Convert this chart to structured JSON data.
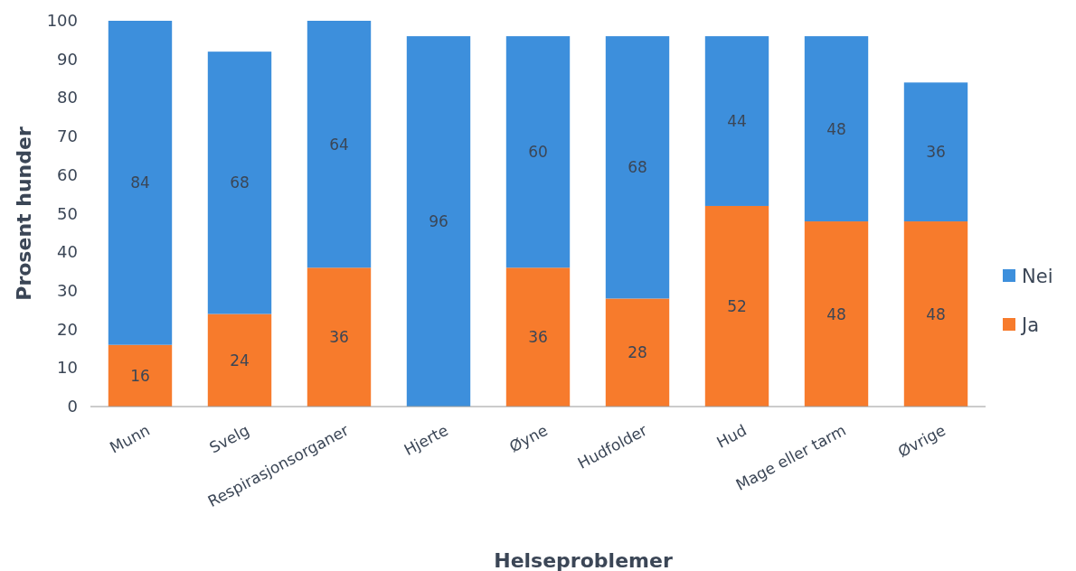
{
  "chart_data": {
    "type": "bar",
    "stacked": true,
    "xlabel": "Helseproblemer",
    "ylabel": "Prosent hunder",
    "categories": [
      "Munn",
      "Svelg",
      "Respirasjonsorganer",
      "Hjerte",
      "Øyne",
      "Hudfolder",
      "Hud",
      "Mage eller tarm",
      "Øvrige"
    ],
    "series": [
      {
        "name": "Ja",
        "color": "#f77b2c",
        "values": [
          16,
          24,
          36,
          null,
          36,
          28,
          52,
          48,
          48
        ]
      },
      {
        "name": "Nei",
        "color": "#3d8fdc",
        "values": [
          84,
          68,
          64,
          96,
          60,
          68,
          44,
          48,
          36
        ]
      }
    ],
    "ylim": [
      0,
      100
    ],
    "yticks": [
      0,
      10,
      20,
      30,
      40,
      50,
      60,
      70,
      80,
      90,
      100
    ],
    "data_labels": true,
    "legend": "right",
    "grid": false
  }
}
